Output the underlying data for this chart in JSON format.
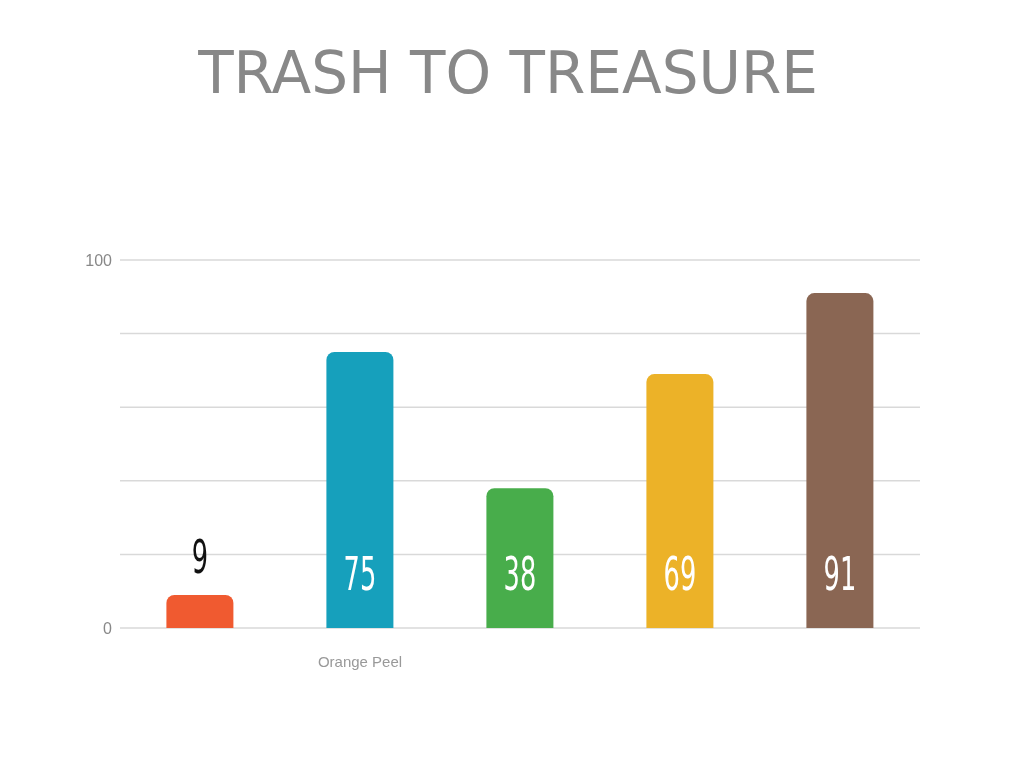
{
  "chart_data": {
    "type": "bar",
    "title": "TRASH TO TREASURE",
    "categories": [
      null,
      "Orange Peel",
      null,
      null,
      null
    ],
    "values": [
      9,
      75,
      38,
      69,
      91
    ],
    "colors": [
      "#f05a30",
      "#16a0bc",
      "#48ad4b",
      "#ecb228",
      "#8a6653"
    ],
    "ylim": [
      0,
      100
    ],
    "yticks": [
      0,
      {
        "value": 20,
        "label": null
      },
      {
        "value": 40,
        "label": null
      },
      {
        "value": 60,
        "label": null
      },
      {
        "value": 80,
        "label": null
      },
      100
    ],
    "grid": "y",
    "data_labels": true
  }
}
